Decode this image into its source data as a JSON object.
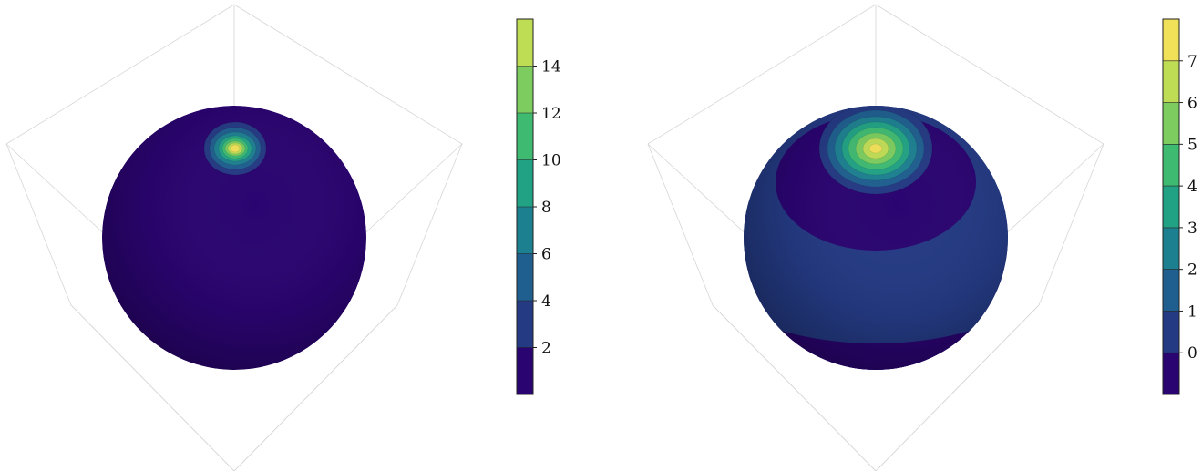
{
  "chart_data": [
    {
      "type": "heatmap",
      "title": "",
      "xlabel": "",
      "ylabel": "",
      "grid": true,
      "colormap": "viridis",
      "colorbar": {
        "levels": [
          0,
          2,
          4,
          6,
          8,
          10,
          12,
          14,
          16
        ],
        "ticks": [
          2,
          4,
          6,
          8,
          10,
          12,
          14
        ],
        "tick_labels": [
          "2",
          "4",
          "6",
          "8",
          "10",
          "12",
          "14"
        ],
        "colors": [
          "#2a0470",
          "#243a83",
          "#1f5f8f",
          "#1d8090",
          "#22a284",
          "#3fba71",
          "#7ccc5f",
          "#bfdc55",
          "#f0e158"
        ]
      },
      "surface": "sphere",
      "pattern": "single localized peak near top of sphere; near-zero elsewhere",
      "peak_value": 16
    },
    {
      "type": "heatmap",
      "title": "",
      "xlabel": "",
      "ylabel": "",
      "grid": true,
      "colormap": "viridis",
      "colorbar": {
        "levels": [
          -1,
          0,
          1,
          2,
          3,
          4,
          5,
          6,
          7,
          8
        ],
        "ticks": [
          0,
          1,
          2,
          3,
          4,
          5,
          6,
          7
        ],
        "tick_labels": [
          "0",
          "1",
          "2",
          "3",
          "4",
          "5",
          "6",
          "7"
        ],
        "colors": [
          "#2a0470",
          "#243a83",
          "#1f5f8f",
          "#1d8090",
          "#22a284",
          "#3fba71",
          "#7ccc5f",
          "#bfdc55",
          "#f0e158"
        ]
      },
      "surface": "sphere",
      "pattern": "broad peak near top of sphere with alternating latitudinal bands below",
      "peak_value": 8
    }
  ]
}
